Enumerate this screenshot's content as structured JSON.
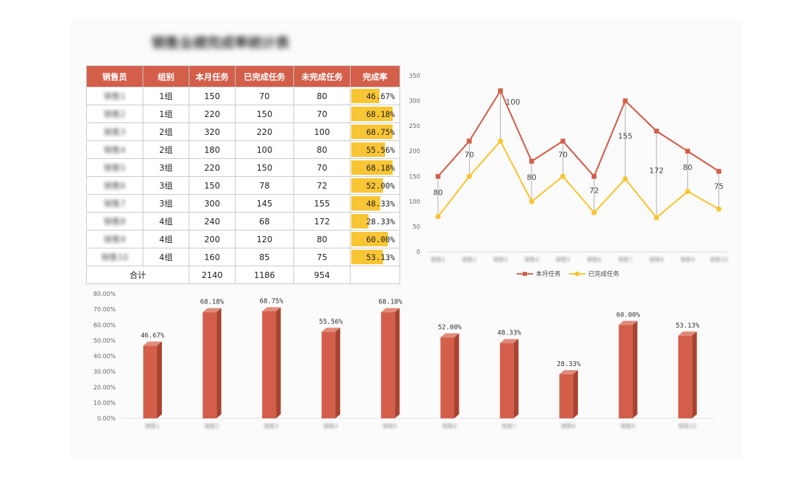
{
  "title": "销售业绩完成率统计表",
  "table": {
    "headers": [
      "销售员",
      "组别",
      "本月任务",
      "已完成任务",
      "未完成任务",
      "完成率"
    ],
    "rows": [
      {
        "name": "销售1",
        "group": "1组",
        "task": "150",
        "done": "70",
        "undone": "80",
        "rate": "46.67%"
      },
      {
        "name": "销售2",
        "group": "1组",
        "task": "220",
        "done": "150",
        "undone": "70",
        "rate": "68.18%"
      },
      {
        "name": "销售3",
        "group": "2组",
        "task": "320",
        "done": "220",
        "undone": "100",
        "rate": "68.75%"
      },
      {
        "name": "销售4",
        "group": "2组",
        "task": "180",
        "done": "100",
        "undone": "80",
        "rate": "55.56%"
      },
      {
        "name": "销售5",
        "group": "3组",
        "task": "220",
        "done": "150",
        "undone": "70",
        "rate": "68.18%"
      },
      {
        "name": "销售6",
        "group": "3组",
        "task": "150",
        "done": "78",
        "undone": "72",
        "rate": "52.00%"
      },
      {
        "name": "销售7",
        "group": "3组",
        "task": "300",
        "done": "145",
        "undone": "155",
        "rate": "48.33%"
      },
      {
        "name": "销售8",
        "group": "4组",
        "task": "240",
        "done": "68",
        "undone": "172",
        "rate": "28.33%"
      },
      {
        "name": "销售9",
        "group": "4组",
        "task": "200",
        "done": "120",
        "undone": "80",
        "rate": "60.00%"
      },
      {
        "name": "销售10",
        "group": "4组",
        "task": "160",
        "done": "85",
        "undone": "75",
        "rate": "53.13%"
      }
    ],
    "total": {
      "label": "合计",
      "task": "2140",
      "done": "1186",
      "undone": "954"
    },
    "rate_fraction": [
      0.4667,
      0.6818,
      0.6875,
      0.5556,
      0.6818,
      0.52,
      0.4833,
      0.2833,
      0.6,
      0.5313
    ]
  },
  "colors": {
    "header": "#d35f4b",
    "task_line": "#d35f4b",
    "done_line": "#f8c534",
    "bar": "#d35f4b",
    "rate_bar": "#f8c534"
  },
  "chart_data": [
    {
      "type": "line",
      "categories": [
        "销售1",
        "销售2",
        "销售3",
        "销售4",
        "销售5",
        "销售6",
        "销售7",
        "销售8",
        "销售9",
        "销售10"
      ],
      "series": [
        {
          "name": "本月任务",
          "values": [
            150,
            220,
            320,
            180,
            220,
            150,
            300,
            240,
            200,
            160
          ]
        },
        {
          "name": "已完成任务",
          "values": [
            70,
            150,
            220,
            100,
            150,
            78,
            145,
            68,
            120,
            85
          ]
        }
      ],
      "data_labels": [
        80,
        70,
        100,
        80,
        70,
        72,
        155,
        172,
        80,
        75
      ],
      "ylim": [
        0,
        350
      ],
      "yticks": [
        0,
        50,
        100,
        150,
        200,
        250,
        300,
        350
      ],
      "legend": "bottom"
    },
    {
      "type": "bar",
      "categories": [
        "销售1",
        "销售2",
        "销售3",
        "销售4",
        "销售5",
        "销售6",
        "销售7",
        "销售8",
        "销售9",
        "销售10"
      ],
      "values": [
        46.67,
        68.18,
        68.75,
        55.56,
        68.18,
        52.0,
        48.33,
        28.33,
        60.0,
        53.13
      ],
      "labels": [
        "46.67%",
        "68.18%",
        "68.75%",
        "55.56%",
        "68.18%",
        "52.00%",
        "48.33%",
        "28.33%",
        "60.00%",
        "53.13%"
      ],
      "ylim": [
        0,
        80
      ],
      "yticks": [
        "0.00%",
        "10.00%",
        "20.00%",
        "30.00%",
        "40.00%",
        "50.00%",
        "60.00%",
        "70.00%",
        "80.00%"
      ]
    }
  ]
}
